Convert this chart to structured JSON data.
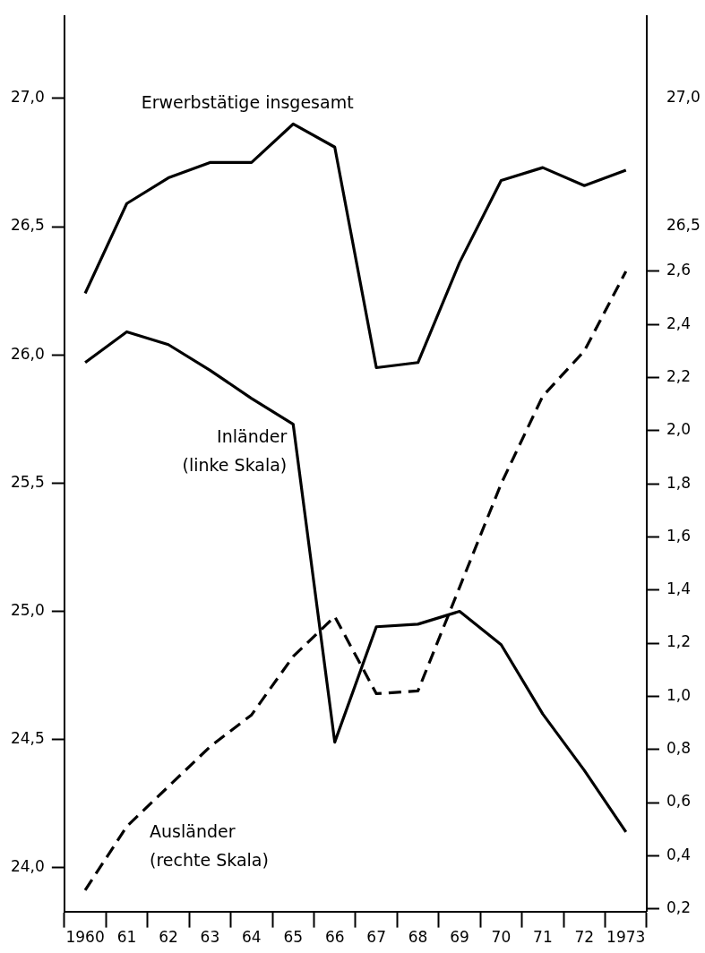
{
  "chart_data": {
    "type": "line",
    "categories": [
      "1960",
      "61",
      "62",
      "63",
      "64",
      "65",
      "66",
      "67",
      "68",
      "69",
      "70",
      "71",
      "72",
      "1973"
    ],
    "series": [
      {
        "name": "Erwerbstätige insgesamt",
        "color": "#000000",
        "values": [
          26.24,
          26.59,
          26.69,
          26.75,
          26.75,
          26.9,
          26.81,
          25.95,
          25.97,
          26.36,
          26.68,
          26.73,
          26.66,
          26.72
        ]
      },
      {
        "name": "Inländer (linke Skala)",
        "color": "#000000",
        "values": [
          25.97,
          26.09,
          26.04,
          25.94,
          25.83,
          25.73,
          24.49,
          24.94,
          24.95,
          25.0,
          24.87,
          24.6,
          24.38,
          24.14
        ]
      },
      {
        "name": "Ausländer (rechte Skala)",
        "color": "#000000",
        "axis": "y2",
        "line_style": "dashed",
        "values": [
          0.27,
          0.51,
          0.66,
          0.81,
          0.93,
          1.15,
          1.3,
          1.01,
          1.02,
          1.41,
          1.8,
          2.13,
          2.3,
          2.6
        ]
      }
    ],
    "ylim": [
      23.83,
      27.32
    ],
    "yticks": [
      {
        "value": 24,
        "label": "24,0"
      },
      {
        "value": 24.5,
        "label": "24,5"
      },
      {
        "value": 25,
        "label": "25,0"
      },
      {
        "value": 25.5,
        "label": "25,5"
      },
      {
        "value": 26,
        "label": "26,0"
      },
      {
        "value": 26.5,
        "label": "26,5"
      },
      {
        "value": 27,
        "label": "27,0"
      }
    ],
    "y2lim": [
      0.19,
      3.56
    ],
    "y2ticks": [
      {
        "value": 0.2,
        "label": "0,2"
      },
      {
        "value": 0.4,
        "label": "0,4"
      },
      {
        "value": 0.6,
        "label": "0,6"
      },
      {
        "value": 0.8,
        "label": "0,8"
      },
      {
        "value": 1.0,
        "label": "1,0"
      },
      {
        "value": 1.2,
        "label": "1,2"
      },
      {
        "value": 1.4,
        "label": "1,4"
      },
      {
        "value": 1.6,
        "label": "1,6"
      },
      {
        "value": 1.8,
        "label": "1,8"
      },
      {
        "value": 2.0,
        "label": "2,0"
      },
      {
        "value": 2.2,
        "label": "2,2"
      },
      {
        "value": 2.4,
        "label": "2,4"
      },
      {
        "value": 2.6,
        "label": "2,6"
      }
    ],
    "y3lim": [
      23.83,
      27.32
    ],
    "y3ticks": [
      {
        "value": 26.5,
        "label": "26,5"
      },
      {
        "value": 27,
        "label": "27,0"
      }
    ],
    "grid": false,
    "legend": false,
    "marker": "none",
    "line_style": "solid"
  }
}
